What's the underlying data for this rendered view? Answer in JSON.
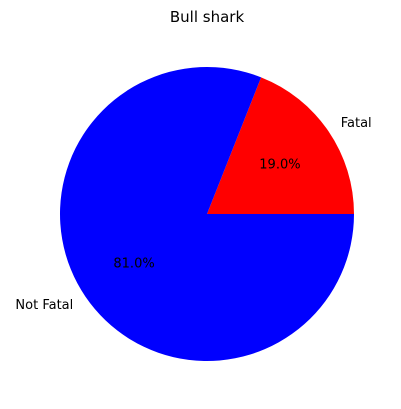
{
  "chart_data": {
    "type": "pie",
    "title": "Bull shark",
    "slices": [
      {
        "label": "Fatal",
        "value": 19.0,
        "pct_label": "19.0%",
        "color": "#ff0000"
      },
      {
        "label": "Not Fatal",
        "value": 81.0,
        "pct_label": "81.0%",
        "color": "#0000ff"
      }
    ],
    "start_angle": "0 degrees, counterclockwise",
    "legend": "none"
  }
}
